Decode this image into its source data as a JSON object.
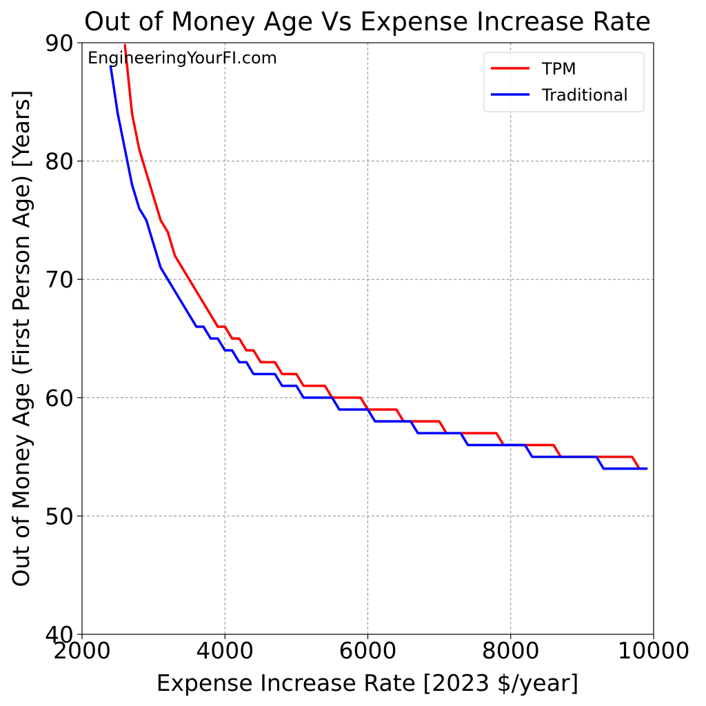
{
  "chart_data": {
    "type": "line",
    "title": "Out of Money Age Vs Expense Increase Rate",
    "xlabel": "Expense Increase Rate [2023 $/year]",
    "ylabel": "Out of Money Age (First Person Age) [Years]",
    "watermark": "EngineeringYourFI.com",
    "xlim": [
      2000,
      10000
    ],
    "ylim": [
      40,
      90
    ],
    "xticks": [
      2000,
      4000,
      6000,
      8000,
      10000
    ],
    "yticks": [
      40,
      50,
      60,
      70,
      80,
      90
    ],
    "grid": true,
    "legend_position": "top-right",
    "series": [
      {
        "name": "TPM",
        "color": "#ff0000",
        "points": [
          [
            2600,
            89.8
          ],
          [
            2700,
            84
          ],
          [
            2800,
            81
          ],
          [
            2900,
            79
          ],
          [
            3000,
            77
          ],
          [
            3100,
            75
          ],
          [
            3200,
            74
          ],
          [
            3300,
            72
          ],
          [
            3400,
            71
          ],
          [
            3500,
            70
          ],
          [
            3600,
            69
          ],
          [
            3700,
            68
          ],
          [
            3800,
            67
          ],
          [
            3900,
            66
          ],
          [
            4000,
            66
          ],
          [
            4100,
            65
          ],
          [
            4200,
            65
          ],
          [
            4300,
            64
          ],
          [
            4400,
            64
          ],
          [
            4500,
            63
          ],
          [
            4700,
            63
          ],
          [
            4800,
            62
          ],
          [
            5000,
            62
          ],
          [
            5100,
            61
          ],
          [
            5400,
            61
          ],
          [
            5500,
            60
          ],
          [
            5900,
            60
          ],
          [
            6000,
            59
          ],
          [
            6400,
            59
          ],
          [
            6500,
            58
          ],
          [
            7000,
            58
          ],
          [
            7100,
            57
          ],
          [
            7800,
            57
          ],
          [
            7900,
            56
          ],
          [
            8600,
            56
          ],
          [
            8700,
            55
          ],
          [
            9700,
            55
          ],
          [
            9800,
            54
          ],
          [
            9900,
            54
          ]
        ]
      },
      {
        "name": "Traditional",
        "color": "#0000ff",
        "points": [
          [
            2400,
            88
          ],
          [
            2500,
            84
          ],
          [
            2600,
            81
          ],
          [
            2700,
            78
          ],
          [
            2800,
            76
          ],
          [
            2900,
            75
          ],
          [
            3000,
            73
          ],
          [
            3100,
            71
          ],
          [
            3200,
            70
          ],
          [
            3300,
            69
          ],
          [
            3400,
            68
          ],
          [
            3500,
            67
          ],
          [
            3600,
            66
          ],
          [
            3700,
            66
          ],
          [
            3800,
            65
          ],
          [
            3900,
            65
          ],
          [
            4000,
            64
          ],
          [
            4100,
            64
          ],
          [
            4200,
            63
          ],
          [
            4300,
            63
          ],
          [
            4400,
            62
          ],
          [
            4700,
            62
          ],
          [
            4800,
            61
          ],
          [
            5000,
            61
          ],
          [
            5100,
            60
          ],
          [
            5500,
            60
          ],
          [
            5600,
            59
          ],
          [
            6000,
            59
          ],
          [
            6100,
            58
          ],
          [
            6600,
            58
          ],
          [
            6700,
            57
          ],
          [
            7300,
            57
          ],
          [
            7400,
            56
          ],
          [
            8200,
            56
          ],
          [
            8300,
            55
          ],
          [
            9200,
            55
          ],
          [
            9300,
            54
          ],
          [
            9900,
            54
          ]
        ]
      }
    ]
  }
}
